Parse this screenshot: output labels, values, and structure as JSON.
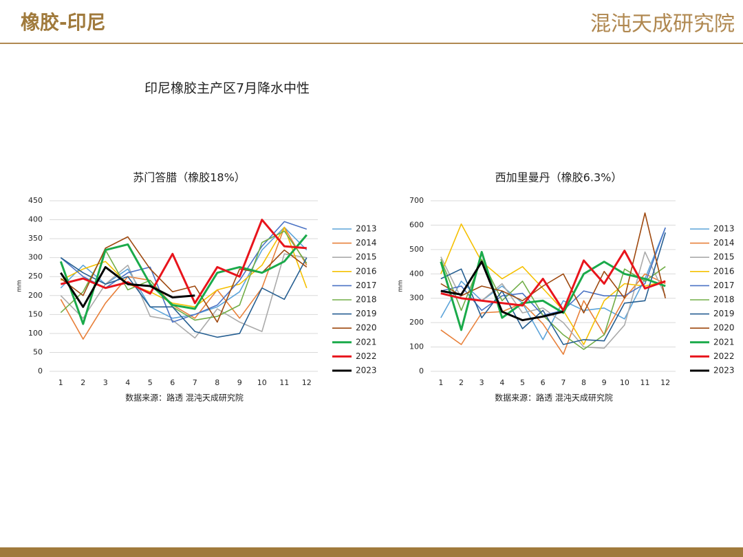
{
  "header": {
    "title": "橡胶-印尼",
    "logo": "混沌天成研究院"
  },
  "main_title": "印尼橡胶主产区7月降水中性",
  "chart_data": [
    {
      "type": "line",
      "title": "苏门答腊（橡胶18%）",
      "y_label": "mm",
      "source": "数据来源：路透 混沌天成研究院",
      "categories": [
        "1",
        "2",
        "3",
        "4",
        "5",
        "6",
        "7",
        "8",
        "9",
        "10",
        "11",
        "12"
      ],
      "ylim": [
        0,
        450
      ],
      "yticks": [
        0,
        50,
        100,
        150,
        200,
        250,
        300,
        350,
        400,
        450
      ],
      "series": [
        {
          "name": "2013",
          "color": "#5ba3d9",
          "values": [
            220,
            280,
            230,
            270,
            170,
            140,
            150,
            170,
            210,
            320,
            380,
            320
          ]
        },
        {
          "name": "2014",
          "color": "#e8803a",
          "values": [
            190,
            85,
            180,
            250,
            240,
            175,
            140,
            215,
            140,
            220,
            380,
            280
          ]
        },
        {
          "name": "2015",
          "color": "#aaaaaa",
          "values": [
            200,
            140,
            230,
            280,
            145,
            135,
            88,
            165,
            130,
            105,
            310,
            300
          ]
        },
        {
          "name": "2016",
          "color": "#f5c000",
          "values": [
            240,
            270,
            290,
            230,
            210,
            180,
            170,
            215,
            230,
            280,
            380,
            220
          ]
        },
        {
          "name": "2017",
          "color": "#4a72c4",
          "values": [
            300,
            250,
            220,
            260,
            275,
            130,
            150,
            175,
            240,
            330,
            395,
            375
          ]
        },
        {
          "name": "2018",
          "color": "#70ad47",
          "values": [
            155,
            210,
            320,
            215,
            240,
            170,
            135,
            145,
            175,
            340,
            370,
            285
          ]
        },
        {
          "name": "2019",
          "color": "#255e91",
          "values": [
            300,
            260,
            230,
            250,
            170,
            170,
            105,
            90,
            100,
            220,
            190,
            300
          ]
        },
        {
          "name": "2020",
          "color": "#9e480e",
          "values": [
            245,
            200,
            325,
            355,
            270,
            210,
            225,
            130,
            270,
            260,
            320,
            275
          ]
        },
        {
          "name": "2021",
          "color": "#1aaa4a",
          "bold": true,
          "values": [
            290,
            125,
            320,
            335,
            230,
            175,
            165,
            260,
            275,
            260,
            290,
            360
          ]
        },
        {
          "name": "2022",
          "color": "#e8141c",
          "bold": true,
          "values": [
            230,
            245,
            220,
            235,
            205,
            310,
            180,
            275,
            250,
            400,
            330,
            325
          ]
        },
        {
          "name": "2023",
          "color": "#000000",
          "bold": true,
          "values": [
            260,
            170,
            275,
            230,
            225,
            195,
            200,
            null,
            null,
            null,
            null,
            null
          ]
        }
      ]
    },
    {
      "type": "line",
      "title": "西加里曼丹（橡胶6.3%）",
      "y_label": "mm",
      "source": "数据来源：路透 混沌天成研究院",
      "categories": [
        "1",
        "2",
        "3",
        "4",
        "5",
        "6",
        "7",
        "8",
        "9",
        "10",
        "11",
        "12"
      ],
      "ylim": [
        0,
        700
      ],
      "yticks": [
        0,
        100,
        200,
        300,
        400,
        500,
        600,
        700
      ],
      "series": [
        {
          "name": "2013",
          "color": "#5ba3d9",
          "values": [
            220,
            370,
            290,
            350,
            280,
            130,
            290,
            250,
            260,
            215,
            380,
            590
          ]
        },
        {
          "name": "2014",
          "color": "#e8803a",
          "values": [
            170,
            110,
            240,
            245,
            280,
            195,
            70,
            290,
            150,
            300,
            400,
            360
          ]
        },
        {
          "name": "2015",
          "color": "#aaaaaa",
          "values": [
            470,
            300,
            290,
            360,
            240,
            260,
            200,
            100,
            95,
            190,
            490,
            310
          ]
        },
        {
          "name": "2016",
          "color": "#f5c000",
          "values": [
            400,
            605,
            450,
            380,
            430,
            340,
            250,
            110,
            290,
            360,
            350,
            370
          ]
        },
        {
          "name": "2017",
          "color": "#4a72c4",
          "values": [
            330,
            350,
            250,
            310,
            320,
            230,
            250,
            330,
            310,
            310,
            360,
            590
          ]
        },
        {
          "name": "2018",
          "color": "#70ad47",
          "values": [
            460,
            250,
            460,
            290,
            370,
            230,
            150,
            90,
            150,
            420,
            370,
            430
          ]
        },
        {
          "name": "2019",
          "color": "#255e91",
          "values": [
            380,
            420,
            220,
            330,
            175,
            250,
            110,
            130,
            125,
            280,
            290,
            570
          ]
        },
        {
          "name": "2020",
          "color": "#9e480e",
          "values": [
            360,
            310,
            350,
            330,
            290,
            350,
            400,
            240,
            410,
            300,
            650,
            300
          ]
        },
        {
          "name": "2021",
          "color": "#1aaa4a",
          "bold": true,
          "values": [
            450,
            170,
            490,
            220,
            280,
            290,
            240,
            400,
            450,
            400,
            380,
            350
          ]
        },
        {
          "name": "2022",
          "color": "#e8141c",
          "bold": true,
          "values": [
            320,
            300,
            290,
            280,
            270,
            380,
            250,
            455,
            360,
            495,
            340,
            370
          ]
        },
        {
          "name": "2023",
          "color": "#000000",
          "bold": true,
          "values": [
            330,
            315,
            450,
            245,
            210,
            225,
            245,
            null,
            null,
            null,
            null,
            null
          ]
        }
      ]
    }
  ]
}
